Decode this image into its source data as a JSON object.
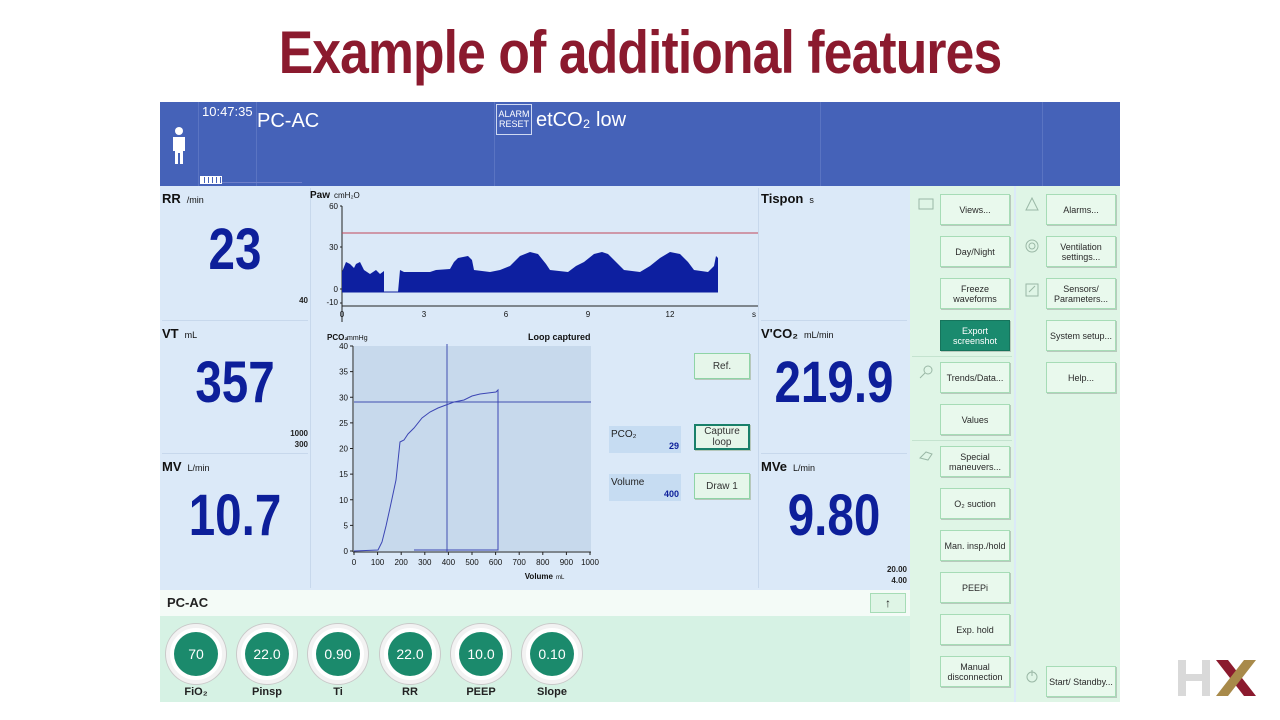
{
  "slide": {
    "title": "Example of additional features"
  },
  "header": {
    "time": "10:47:35",
    "mode": "PC-AC",
    "alarm_reset": [
      "ALARM",
      "RESET"
    ],
    "alarm_message": "etCO₂ low"
  },
  "params": {
    "rr": {
      "label": "RR",
      "unit": "/min",
      "value": "23",
      "limit": "40"
    },
    "vt": {
      "label": "VT",
      "unit": "mL",
      "value": "357",
      "limit_high": "1000",
      "limit_low": "300"
    },
    "mv": {
      "label": "MV",
      "unit": "L/min",
      "value": "10.7"
    },
    "tispon": {
      "label": "Tispon",
      "unit": "s"
    },
    "vco2": {
      "label": "V'CO₂",
      "unit": "mL/min",
      "value": "219.9"
    },
    "mve": {
      "label": "MVe",
      "unit": "L/min",
      "value": "9.80",
      "limit_high": "20.00",
      "limit_low": "4.00"
    }
  },
  "waveform": {
    "label": "Paw",
    "unit": "cmH₂O",
    "y_ticks": [
      "60",
      "30",
      "0",
      "-10"
    ],
    "x_ticks": [
      "0",
      "3",
      "6",
      "9",
      "12",
      "s"
    ]
  },
  "loop": {
    "ylabel": "PCO₂",
    "yunit": "mmHg",
    "status": "Loop captured",
    "y_ticks": [
      "40",
      "35",
      "30",
      "25",
      "20",
      "15",
      "10",
      "5",
      "0"
    ],
    "x_ticks": [
      "0",
      "100",
      "200",
      "300",
      "400",
      "500",
      "600",
      "700",
      "800",
      "900",
      "1000"
    ],
    "xlabel": "Volume",
    "xunit": "mL",
    "buttons": {
      "ref": "Ref.",
      "capture": "Capture loop",
      "draw": "Draw 1"
    },
    "cursor": {
      "pco2_label": "PCO₂",
      "pco2_value": "29",
      "volume_label": "Volume",
      "volume_value": "400"
    }
  },
  "menu_left": {
    "views": "Views...",
    "day_night": "Day/Night",
    "freeze": "Freeze waveforms",
    "export": "Export screenshot",
    "trends": "Trends/Data...",
    "values": "Values",
    "special": "Special maneuvers...",
    "o2_suction": "O₂ suction",
    "man_insp": "Man. insp./hold",
    "peepi": "PEEPi",
    "exp_hold": "Exp. hold",
    "manual_disc": "Manual disconnection"
  },
  "menu_right": {
    "alarms": "Alarms...",
    "ventilation": "Ventilation settings...",
    "sensors": "Sensors/ Parameters...",
    "system": "System setup...",
    "help": "Help...",
    "standby": "Start/ Standby..."
  },
  "settings": {
    "mode": "PC-AC",
    "arrow": "↑",
    "dials": [
      {
        "name": "FiO₂",
        "value": "70"
      },
      {
        "name": "Pinsp",
        "value": "22.0"
      },
      {
        "name": "Ti",
        "value": "0.90"
      },
      {
        "name": "RR",
        "value": "22.0"
      },
      {
        "name": "PEEP",
        "value": "10.0"
      },
      {
        "name": "Slope",
        "value": "0.10"
      }
    ]
  },
  "colors": {
    "title": "#8b1a2e",
    "header": "#4562b8",
    "value_blue": "#0d1f9a",
    "waveform_fill": "#0d1fa0",
    "accent_green": "#1b8a6c",
    "alarm_limit": "#c0485a"
  }
}
